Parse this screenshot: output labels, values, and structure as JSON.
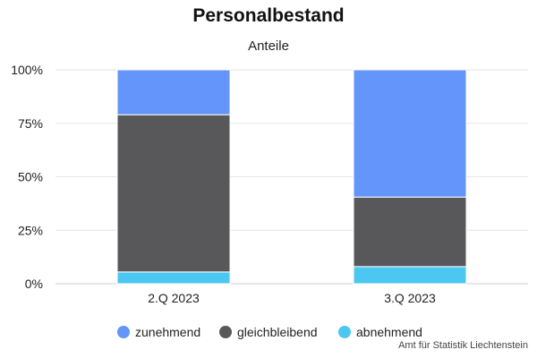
{
  "chart_data": {
    "type": "bar",
    "stacked": true,
    "normalized": true,
    "title": "Personalbestand",
    "subtitle": "Anteile",
    "categories": [
      "2.Q 2023",
      "3.Q 2023"
    ],
    "series": [
      {
        "name": "abnehmend",
        "color": "#4cc7f2",
        "values": [
          5.5,
          8
        ]
      },
      {
        "name": "gleichbleibend",
        "color": "#58585a",
        "values": [
          73.5,
          32.5
        ]
      },
      {
        "name": "zunehmend",
        "color": "#6495fb",
        "values": [
          21,
          59.5
        ]
      }
    ],
    "legend_order": [
      "zunehmend",
      "gleichbleibend",
      "abnehmend"
    ],
    "ylim": [
      0,
      100
    ],
    "yticks": [
      "0%",
      "25%",
      "50%",
      "75%",
      "100%"
    ],
    "grid": true,
    "legend_position": "bottom"
  },
  "source": "Amt für Statistik Liechtenstein"
}
